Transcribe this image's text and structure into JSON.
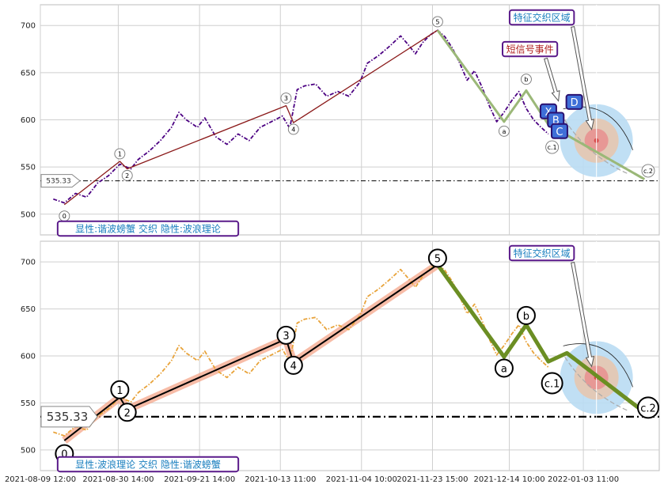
{
  "chart_data": [
    {
      "type": "line",
      "panel": "top",
      "title": "",
      "xlabel": "",
      "ylabel": "",
      "ylim": [
        478,
        722
      ],
      "yticks": [
        500,
        550,
        600,
        650,
        700
      ],
      "x_range": [
        "2021-08-09 12:00",
        "2022-01-24 00:00"
      ],
      "grid": true,
      "series": [
        {
          "role": "price",
          "color": "#4b0082",
          "style": "dash-dot",
          "points": [
            [
              "2021-08-13",
              516
            ],
            [
              "2021-08-16",
              512
            ],
            [
              "2021-08-19",
              522
            ],
            [
              "2021-08-22",
              518
            ],
            [
              "2021-08-25",
              533
            ],
            [
              "2021-08-28",
              541
            ],
            [
              "2021-08-31",
              553
            ],
            [
              "2021-09-03",
              548
            ],
            [
              "2021-09-05",
              558
            ],
            [
              "2021-09-08",
              567
            ],
            [
              "2021-09-11",
              578
            ],
            [
              "2021-09-14",
              592
            ],
            [
              "2021-09-16",
              608
            ],
            [
              "2021-09-18",
              600
            ],
            [
              "2021-09-21",
              592
            ],
            [
              "2021-09-23",
              602
            ],
            [
              "2021-09-26",
              582
            ],
            [
              "2021-09-29",
              574
            ],
            [
              "2021-10-02",
              585
            ],
            [
              "2021-10-05",
              578
            ],
            [
              "2021-10-08",
              592
            ],
            [
              "2021-10-11",
              598
            ],
            [
              "2021-10-14",
              604
            ],
            [
              "2021-10-16",
              591
            ],
            [
              "2021-10-18",
              632
            ],
            [
              "2021-10-20",
              636
            ],
            [
              "2021-10-23",
              638
            ],
            [
              "2021-10-26",
              625
            ],
            [
              "2021-10-29",
              630
            ],
            [
              "2021-11-01",
              625
            ],
            [
              "2021-11-04",
              640
            ],
            [
              "2021-11-06",
              660
            ],
            [
              "2021-11-09",
              668
            ],
            [
              "2021-11-12",
              678
            ],
            [
              "2021-11-15",
              689
            ],
            [
              "2021-11-17",
              680
            ],
            [
              "2021-11-19",
              670
            ],
            [
              "2021-11-21",
              682
            ],
            [
              "2021-11-23",
              690
            ],
            [
              "2021-11-25",
              695
            ],
            [
              "2021-11-27",
              688
            ],
            [
              "2021-11-29",
              676
            ],
            [
              "2021-12-01",
              660
            ],
            [
              "2021-12-03",
              642
            ],
            [
              "2021-12-05",
              652
            ],
            [
              "2021-12-07",
              635
            ],
            [
              "2021-12-09",
              615
            ],
            [
              "2021-12-11",
              598
            ],
            [
              "2021-12-13",
              608
            ],
            [
              "2021-12-15",
              620
            ],
            [
              "2021-12-17",
              630
            ],
            [
              "2021-12-19",
              612
            ],
            [
              "2021-12-21",
              600
            ],
            [
              "2021-12-23",
              592
            ],
            [
              "2021-12-25",
              585
            ]
          ]
        },
        {
          "role": "impulse-wave",
          "color": "#8b1a1a",
          "style": "solid",
          "points": [
            [
              "2021-08-16",
              510
            ],
            [
              "2021-08-31",
              556
            ],
            [
              "2021-09-02",
              548
            ],
            [
              "2021-10-15",
              615
            ],
            [
              "2021-10-17",
              597
            ],
            [
              "2021-11-25",
              695
            ]
          ]
        },
        {
          "role": "corrective-wave",
          "color": "#9bb878",
          "style": "solid",
          "points": [
            [
              "2021-11-25",
              695
            ],
            [
              "2021-12-13",
              598
            ],
            [
              "2021-12-19",
              631
            ],
            [
              "2021-12-25",
              595
            ],
            [
              "2022-01-20",
              537
            ]
          ]
        }
      ],
      "wave_labels": [
        {
          "label": "0",
          "x": "2021-08-16",
          "y": 498
        },
        {
          "label": "1",
          "x": "2021-08-31",
          "y": 564
        },
        {
          "label": "2",
          "x": "2021-09-02",
          "y": 541
        },
        {
          "label": "3",
          "x": "2021-10-15",
          "y": 623
        },
        {
          "label": "4",
          "x": "2021-10-17",
          "y": 590
        },
        {
          "label": "5",
          "x": "2021-11-25",
          "y": 704
        },
        {
          "label": "a",
          "x": "2021-12-13",
          "y": 588
        },
        {
          "label": "b",
          "x": "2021-12-19",
          "y": 643
        },
        {
          "label": "c.1",
          "x": "2021-12-26",
          "y": 571
        },
        {
          "label": "c.2",
          "x": "2022-01-21",
          "y": 546
        }
      ],
      "signal_points": [
        {
          "label": "X",
          "x": "2021-12-25",
          "y": 609
        },
        {
          "label": "B",
          "x": "2021-12-27",
          "y": 600
        },
        {
          "label": "C",
          "x": "2021-12-28",
          "y": 588
        },
        {
          "label": "D",
          "x": "2022-01-01",
          "y": 619
        }
      ],
      "reference_line": {
        "value": 535.33,
        "label": "535.33",
        "style": "dash-dot"
      },
      "target_zone": {
        "x": "2022-01-07",
        "y": 578
      },
      "annotations": {
        "feature_zone": "特征交织区域",
        "short_signal": "短信号事件",
        "legend": "显性:谐波螃蟹 交织 隐性:波浪理论"
      }
    },
    {
      "type": "line",
      "panel": "bottom",
      "title": "",
      "xlabel": "",
      "ylabel": "",
      "ylim": [
        478,
        722
      ],
      "yticks": [
        500,
        550,
        600,
        650,
        700
      ],
      "xticks": [
        "2021-08-09 12:00",
        "2021-08-30 14:00",
        "2021-09-21 14:00",
        "2021-10-13 11:00",
        "2021-11-04 10:00",
        "2021-11-23 15:00",
        "2021-12-14 10:00",
        "2022-01-03 11:00"
      ],
      "grid": true,
      "series": [
        {
          "role": "price",
          "color": "#e8a33a",
          "style": "dash-dot",
          "points": [
            [
              "2021-08-13",
              519
            ],
            [
              "2021-08-16",
              515
            ],
            [
              "2021-08-19",
              525
            ],
            [
              "2021-08-22",
              521
            ],
            [
              "2021-08-25",
              536
            ],
            [
              "2021-08-28",
              544
            ],
            [
              "2021-08-31",
              556
            ],
            [
              "2021-09-03",
              551
            ],
            [
              "2021-09-05",
              561
            ],
            [
              "2021-09-08",
              570
            ],
            [
              "2021-09-11",
              581
            ],
            [
              "2021-09-14",
              595
            ],
            [
              "2021-09-16",
              611
            ],
            [
              "2021-09-18",
              603
            ],
            [
              "2021-09-21",
              595
            ],
            [
              "2021-09-23",
              605
            ],
            [
              "2021-09-26",
              585
            ],
            [
              "2021-09-29",
              577
            ],
            [
              "2021-10-02",
              588
            ],
            [
              "2021-10-05",
              581
            ],
            [
              "2021-10-08",
              595
            ],
            [
              "2021-10-11",
              601
            ],
            [
              "2021-10-14",
              607
            ],
            [
              "2021-10-16",
              594
            ],
            [
              "2021-10-18",
              635
            ],
            [
              "2021-10-20",
              639
            ],
            [
              "2021-10-23",
              641
            ],
            [
              "2021-10-26",
              628
            ],
            [
              "2021-10-29",
              633
            ],
            [
              "2021-11-01",
              628
            ],
            [
              "2021-11-04",
              643
            ],
            [
              "2021-11-06",
              663
            ],
            [
              "2021-11-09",
              671
            ],
            [
              "2021-11-12",
              681
            ],
            [
              "2021-11-15",
              692
            ],
            [
              "2021-11-17",
              683
            ],
            [
              "2021-11-19",
              673
            ],
            [
              "2021-11-21",
              685
            ],
            [
              "2021-11-23",
              693
            ],
            [
              "2021-11-25",
              698
            ],
            [
              "2021-11-27",
              691
            ],
            [
              "2021-11-29",
              679
            ],
            [
              "2021-12-01",
              663
            ],
            [
              "2021-12-03",
              645
            ],
            [
              "2021-12-05",
              655
            ],
            [
              "2021-12-07",
              638
            ],
            [
              "2021-12-09",
              618
            ],
            [
              "2021-12-11",
              601
            ],
            [
              "2021-12-13",
              611
            ],
            [
              "2021-12-15",
              623
            ],
            [
              "2021-12-17",
              633
            ],
            [
              "2021-12-19",
              615
            ],
            [
              "2021-12-21",
              603
            ],
            [
              "2021-12-23",
              595
            ],
            [
              "2021-12-25",
              588
            ]
          ]
        },
        {
          "role": "impulse-wave",
          "color": "#000000",
          "style": "solid",
          "points": [
            [
              "2021-08-16",
              510
            ],
            [
              "2021-08-31",
              556
            ],
            [
              "2021-09-02",
              543
            ],
            [
              "2021-10-15",
              618
            ],
            [
              "2021-10-17",
              593
            ],
            [
              "2021-11-25",
              697
            ]
          ]
        },
        {
          "role": "corrective-wave",
          "color": "#6b8e23",
          "style": "solid",
          "points": [
            [
              "2021-11-25",
              697
            ],
            [
              "2021-12-13",
              599
            ],
            [
              "2021-12-19",
              633
            ],
            [
              "2021-12-25",
              594
            ],
            [
              "2021-12-30",
              603
            ],
            [
              "2022-01-21",
              537
            ]
          ]
        }
      ],
      "wave_labels": [
        {
          "label": "0",
          "x": "2021-08-16",
          "y": 496
        },
        {
          "label": "1",
          "x": "2021-08-31",
          "y": 564
        },
        {
          "label": "2",
          "x": "2021-09-02",
          "y": 540
        },
        {
          "label": "3",
          "x": "2021-10-15",
          "y": 622
        },
        {
          "label": "4",
          "x": "2021-10-17",
          "y": 590
        },
        {
          "label": "5",
          "x": "2021-11-25",
          "y": 704
        },
        {
          "label": "a",
          "x": "2021-12-13",
          "y": 587
        },
        {
          "label": "b",
          "x": "2021-12-19",
          "y": 643
        },
        {
          "label": "c.1",
          "x": "2021-12-26",
          "y": 571
        },
        {
          "label": "c.2",
          "x": "2022-01-21",
          "y": 545
        }
      ],
      "reference_line": {
        "value": 535.33,
        "label": "535.33",
        "style": "dash-dot"
      },
      "target_zone": {
        "x": "2022-01-07",
        "y": 577
      },
      "annotations": {
        "feature_zone": "特征交织区域",
        "legend": "显性:波浪理论 交织 隐性:谐波螃蟹"
      }
    }
  ],
  "colors": {
    "zone_outer": "#b9dcf3",
    "zone_mid": "#e6c6b0",
    "zone_inner": "#e88f8f",
    "zone_center": "#d94a4a",
    "signal_box": "#3f6fd8",
    "signal_border": "#2a1070",
    "annotation_border": "#5a1a8a",
    "annotation_text": "#1a7fbf",
    "short_signal_text": "#b02020",
    "impulse_band": "#f4a58a"
  }
}
